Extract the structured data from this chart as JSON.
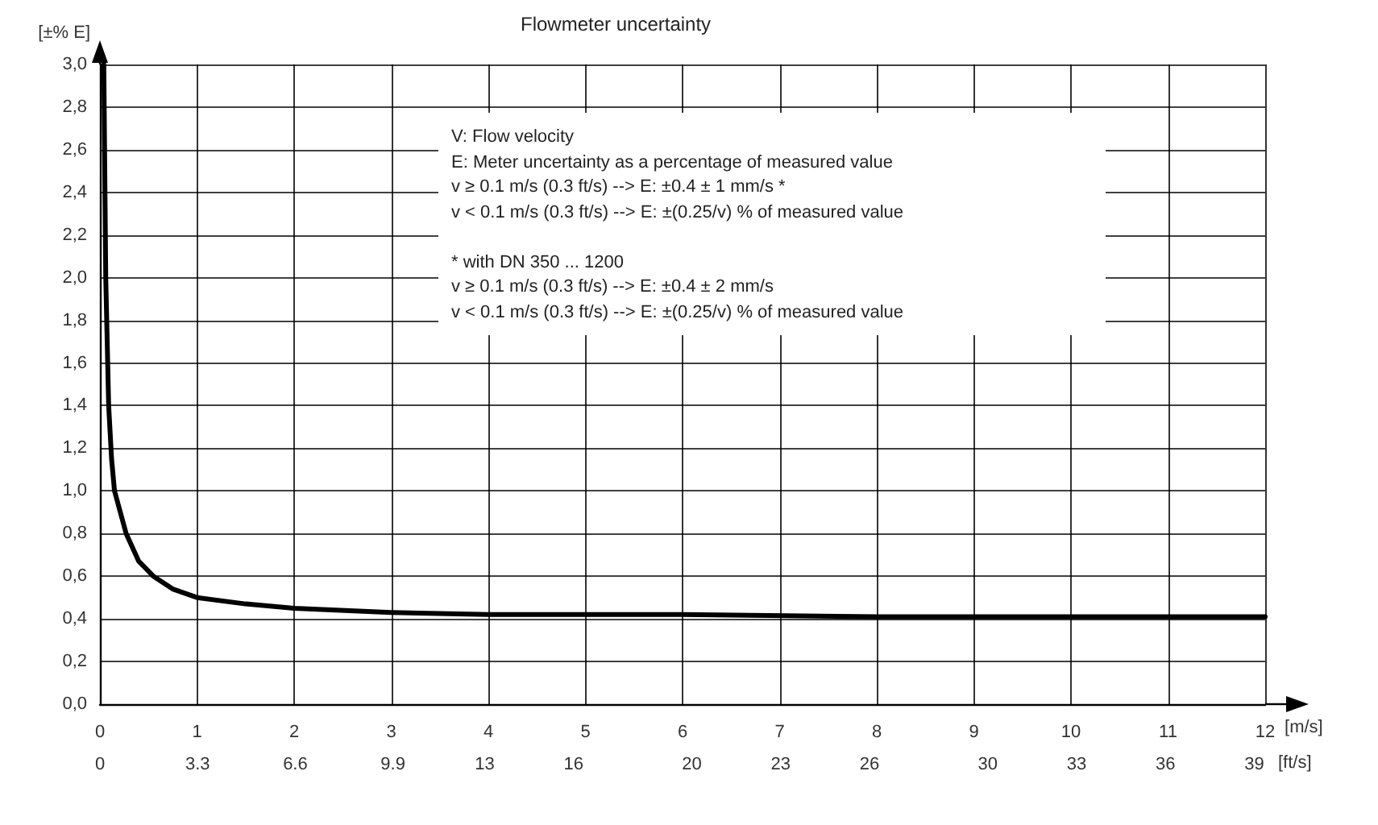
{
  "chart_data": {
    "type": "line",
    "title": "Flowmeter uncertainty",
    "xlabel": "[m/s]",
    "x2label": "[ft/s]",
    "ylabel": "[±% E]",
    "x": [
      0.04,
      0.06,
      0.09,
      0.12,
      0.15,
      0.27,
      0.4,
      0.55,
      0.75,
      1,
      1.5,
      2,
      3,
      4,
      6,
      8,
      10,
      12
    ],
    "series": [
      {
        "color": "#000000",
        "values": [
          3.0,
          2.0,
          1.4,
          1.15,
          1.0,
          0.8,
          0.67,
          0.6,
          0.54,
          0.5,
          0.47,
          0.45,
          0.43,
          0.42,
          0.42,
          0.41,
          0.41,
          0.41
        ]
      }
    ],
    "xlim": [
      0,
      12
    ],
    "xticks": [
      0,
      1,
      2,
      3,
      4,
      5,
      6,
      7,
      8,
      9,
      10,
      11,
      12
    ],
    "x2lim": [
      0,
      39.37
    ],
    "x2ticks": [
      0,
      3.3,
      6.6,
      9.9,
      13,
      16,
      20,
      23,
      26,
      30,
      33,
      36,
      39
    ],
    "ylim": [
      0,
      3
    ],
    "yticks": [
      {
        "value": 0,
        "label": "0,0"
      },
      {
        "value": 0.2,
        "label": "0,2"
      },
      {
        "value": 0.4,
        "label": "0,4"
      },
      {
        "value": 0.6,
        "label": "0,6"
      },
      {
        "value": 0.8,
        "label": "0,8"
      },
      {
        "value": 1,
        "label": "1,0"
      },
      {
        "value": 1.2,
        "label": "1,2"
      },
      {
        "value": 1.4,
        "label": "1,4"
      },
      {
        "value": 1.6,
        "label": "1,6"
      },
      {
        "value": 1.8,
        "label": "1,8"
      },
      {
        "value": 2,
        "label": "2,0"
      },
      {
        "value": 2.2,
        "label": "2,2"
      },
      {
        "value": 2.4,
        "label": "2,4"
      },
      {
        "value": 2.6,
        "label": "2,6"
      },
      {
        "value": 2.8,
        "label": "2,8"
      },
      {
        "value": 3,
        "label": "3,0"
      }
    ],
    "annotations": [
      "V: Flow velocity",
      "E: Meter uncertainty as a percentage of measured value",
      "v ≥  0.1 m/s (0.3 ft/s) --> E:  ±0.4 ± 1 mm/s *",
      "v <  0.1 m/s (0.3 ft/s) --> E:  ±(0.25/v) % of measured value",
      "* with DN 350 ... 1200",
      "v ≥  0.1 m/s (0.3 ft/s) --> E:  ±0.4 ± 2 mm/s",
      "v <  0.1 m/s (0.3 ft/s) --> E:  ±(0.25/v) % of measured value"
    ],
    "grid": true,
    "marker": "none",
    "line_style": "solid"
  }
}
